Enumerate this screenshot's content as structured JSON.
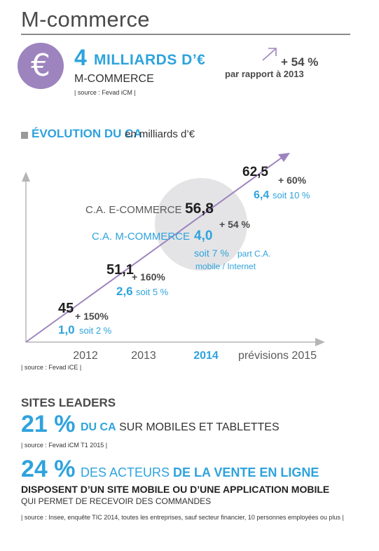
{
  "header": {
    "title": "M-commerce"
  },
  "summary": {
    "icon": "euro-icon",
    "amount": "4",
    "amount_unit": "MILLIARDS D’€",
    "label": "M-COMMERCE",
    "source": "| source : Fevad iCM |",
    "growth_pct": "+ 54 %",
    "growth_text": "par rapport à 2013"
  },
  "section": {
    "title": "ÉVOLUTION DU CA",
    "subtitle": "en milliards d’€",
    "source": "| source : Fevad iCE |"
  },
  "chart_data": {
    "type": "line",
    "x": [
      "2012",
      "2013",
      "2014",
      "prévisions 2015"
    ],
    "highlight_year": "2014",
    "grid": false,
    "series": [
      {
        "name": "C.A. E-COMMERCE",
        "values": [
          45,
          51.1,
          56.8,
          62.5
        ],
        "labels": [
          "45",
          "51,1",
          "56,8",
          "62,5"
        ],
        "color": "#9d84be"
      },
      {
        "name": "C.A. M-COMMERCE",
        "values": [
          1.0,
          2.6,
          4.0,
          6.4
        ],
        "labels": [
          "1,0",
          "2,6",
          "4,0",
          "6,4"
        ],
        "color": "#2ea3dd"
      }
    ],
    "growth_labels": [
      "+ 150%",
      "+ 160%",
      "+ 54 %",
      "+ 60%"
    ],
    "share_labels": [
      "soit 2 %",
      "soit 5 %",
      "soit 7 %",
      "soit 10 %"
    ],
    "annotation_2014": "part C.A. mobile / Internet"
  },
  "leaders": {
    "title": "SITES LEADERS",
    "stat1_pct": "21 %",
    "stat1_strong": "DU CA",
    "stat1_rest": " SUR MOBILES ET TABLETTES",
    "stat1_source": "| source : Fevad iCM T1 2015 |",
    "stat2_pct": "24 %",
    "stat2_text_a": "DES ACTEURS ",
    "stat2_text_b": "DE LA VENTE EN LIGNE",
    "stat2_line2": "DISPOSENT D’UN SITE MOBILE OU D’UNE APPLICATION MOBILE",
    "stat2_line3": "QUI PERMET DE RECEVOIR DES COMMANDES",
    "stat2_source": "| source : Insee, enquête TIC 2014, toutes les entreprises, sauf secteur financier, 10 personnes employées ou plus |"
  },
  "colors": {
    "accent_blue": "#2ea3dd",
    "accent_purple": "#9d84be",
    "axis_gray": "#b5b5b5",
    "bubble_gray": "#e4e4e6"
  }
}
